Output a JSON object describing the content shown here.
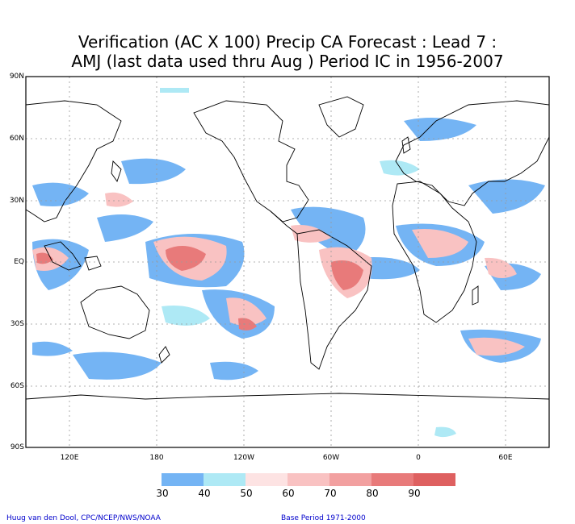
{
  "title_line1": "Verification (AC X 100) Precip CA Forecast : Lead 7 :",
  "title_line2": "AMJ (last data used thru Aug ) Period IC in 1956-2007",
  "lat_ticks": [
    "90N",
    "60N",
    "30N",
    "EQ",
    "30S",
    "60S",
    "90S"
  ],
  "lon_ticks": [
    "120E",
    "180",
    "120W",
    "60W",
    "0",
    "60E"
  ],
  "colorbar": {
    "labels": [
      "30",
      "40",
      "50",
      "60",
      "70",
      "80",
      "90"
    ],
    "colors": [
      "#74b4f4",
      "#aee9f5",
      "#fde3e3",
      "#f9c2c2",
      "#f2a0a0",
      "#e87a7a",
      "#de6060"
    ]
  },
  "credit": "Huug van den Dool, CPC/NCEP/NWS/NOAA",
  "base_period": "Base Period 1971-2000",
  "colors": {
    "coast": "#000000",
    "grid": "#999999",
    "frame": "#000000",
    "footer_text": "#0000cc"
  }
}
